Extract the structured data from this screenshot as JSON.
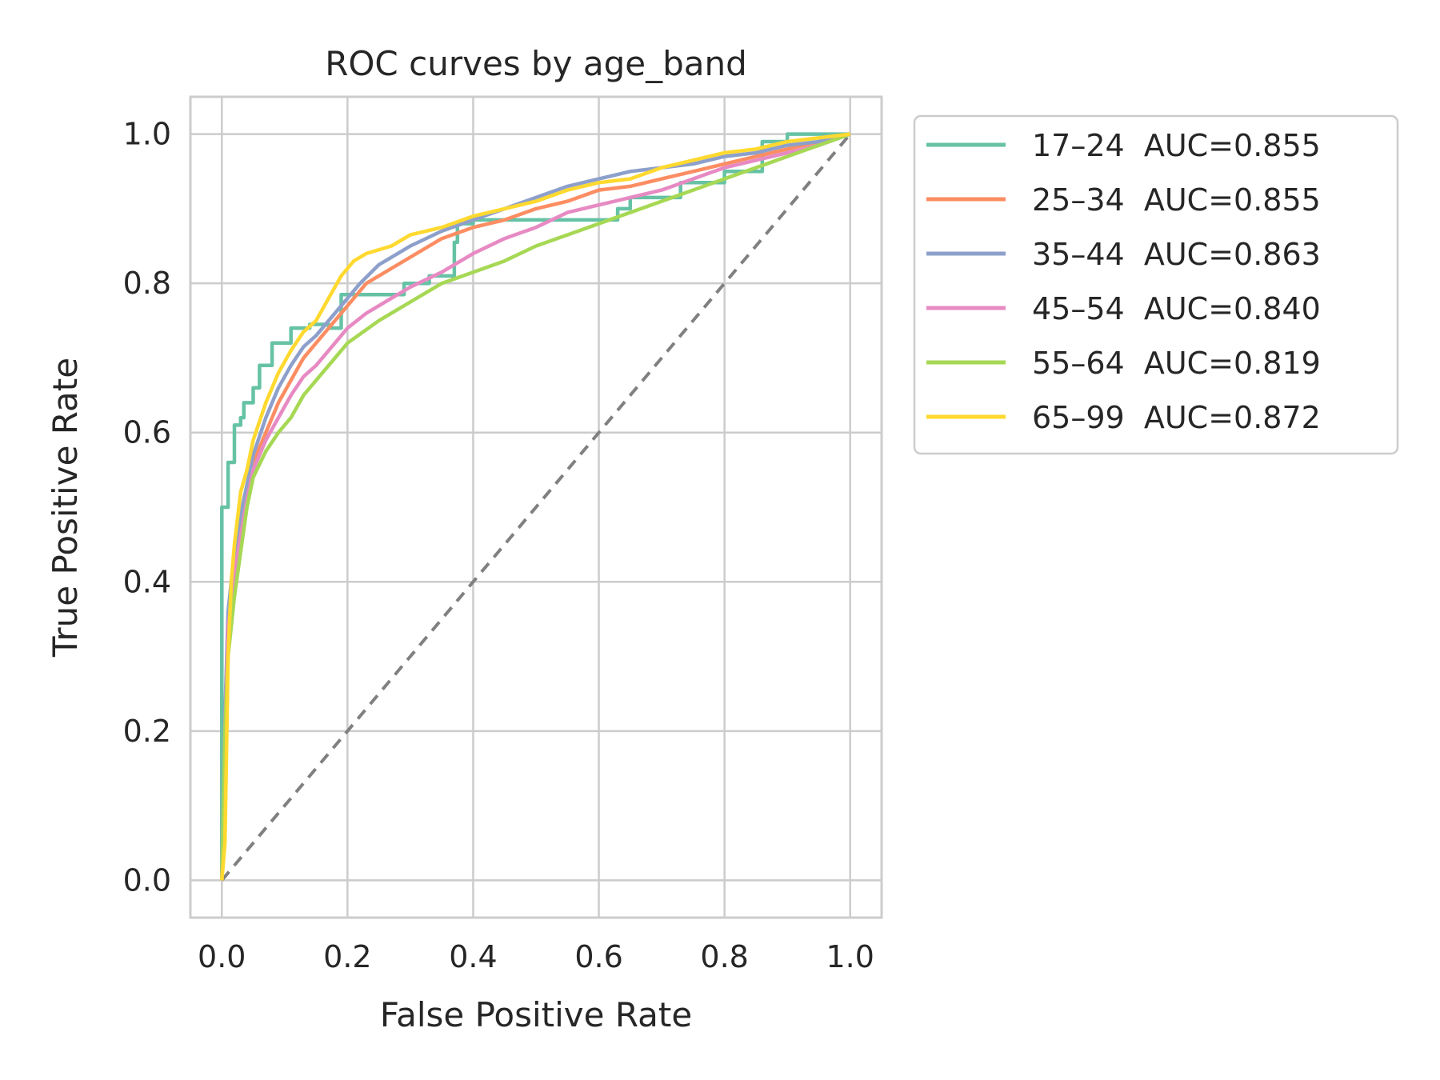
{
  "chart_data": {
    "type": "line",
    "title": "ROC curves by age_band",
    "xlabel": "False Positive Rate",
    "ylabel": "True Positive Rate",
    "xlim": [
      -0.05,
      1.05
    ],
    "ylim": [
      -0.05,
      1.05
    ],
    "xticks": [
      0.0,
      0.2,
      0.4,
      0.6,
      0.8,
      1.0
    ],
    "yticks": [
      0.0,
      0.2,
      0.4,
      0.6,
      0.8,
      1.0
    ],
    "xtick_labels": [
      "0.0",
      "0.2",
      "0.4",
      "0.6",
      "0.8",
      "1.0"
    ],
    "ytick_labels": [
      "0.0",
      "0.2",
      "0.4",
      "0.6",
      "0.8",
      "1.0"
    ],
    "grid": true,
    "legend_position": "outside upper right",
    "diagonal": {
      "style": "dashed",
      "color": "#808080",
      "points": [
        [
          0,
          0
        ],
        [
          1,
          1
        ]
      ]
    },
    "series": [
      {
        "name": "17–24",
        "label": "17–24  AUC=0.855",
        "auc": 0.855,
        "color": "#66c2a5",
        "step": true,
        "points": [
          [
            0,
            0
          ],
          [
            0,
            0.5
          ],
          [
            0.01,
            0.5
          ],
          [
            0.01,
            0.56
          ],
          [
            0.02,
            0.56
          ],
          [
            0.02,
            0.61
          ],
          [
            0.03,
            0.61
          ],
          [
            0.03,
            0.62
          ],
          [
            0.035,
            0.62
          ],
          [
            0.035,
            0.64
          ],
          [
            0.05,
            0.64
          ],
          [
            0.05,
            0.66
          ],
          [
            0.06,
            0.66
          ],
          [
            0.06,
            0.69
          ],
          [
            0.08,
            0.69
          ],
          [
            0.08,
            0.72
          ],
          [
            0.11,
            0.72
          ],
          [
            0.11,
            0.74
          ],
          [
            0.14,
            0.74
          ],
          [
            0.14,
            0.745
          ],
          [
            0.17,
            0.745
          ],
          [
            0.17,
            0.74
          ],
          [
            0.19,
            0.74
          ],
          [
            0.19,
            0.785
          ],
          [
            0.29,
            0.785
          ],
          [
            0.29,
            0.8
          ],
          [
            0.33,
            0.8
          ],
          [
            0.33,
            0.81
          ],
          [
            0.37,
            0.81
          ],
          [
            0.37,
            0.855
          ],
          [
            0.375,
            0.855
          ],
          [
            0.375,
            0.88
          ],
          [
            0.4,
            0.88
          ],
          [
            0.4,
            0.885
          ],
          [
            0.63,
            0.885
          ],
          [
            0.63,
            0.9
          ],
          [
            0.65,
            0.9
          ],
          [
            0.65,
            0.915
          ],
          [
            0.73,
            0.915
          ],
          [
            0.73,
            0.935
          ],
          [
            0.8,
            0.935
          ],
          [
            0.8,
            0.95
          ],
          [
            0.86,
            0.95
          ],
          [
            0.86,
            0.99
          ],
          [
            0.9,
            0.99
          ],
          [
            0.9,
            1.0
          ],
          [
            1,
            1
          ]
        ]
      },
      {
        "name": "25–34",
        "label": "25–34  AUC=0.855",
        "auc": 0.855,
        "color": "#fc8d62",
        "step": false,
        "points": [
          [
            0,
            0
          ],
          [
            0.005,
            0.2
          ],
          [
            0.01,
            0.35
          ],
          [
            0.02,
            0.42
          ],
          [
            0.03,
            0.47
          ],
          [
            0.04,
            0.52
          ],
          [
            0.05,
            0.56
          ],
          [
            0.07,
            0.6
          ],
          [
            0.09,
            0.64
          ],
          [
            0.11,
            0.67
          ],
          [
            0.13,
            0.7
          ],
          [
            0.15,
            0.72
          ],
          [
            0.18,
            0.75
          ],
          [
            0.2,
            0.77
          ],
          [
            0.23,
            0.8
          ],
          [
            0.27,
            0.82
          ],
          [
            0.3,
            0.835
          ],
          [
            0.35,
            0.86
          ],
          [
            0.4,
            0.875
          ],
          [
            0.45,
            0.885
          ],
          [
            0.5,
            0.9
          ],
          [
            0.55,
            0.91
          ],
          [
            0.6,
            0.925
          ],
          [
            0.65,
            0.93
          ],
          [
            0.7,
            0.94
          ],
          [
            0.75,
            0.95
          ],
          [
            0.8,
            0.96
          ],
          [
            0.85,
            0.97
          ],
          [
            0.9,
            0.98
          ],
          [
            0.95,
            0.99
          ],
          [
            1,
            1
          ]
        ]
      },
      {
        "name": "35–44",
        "label": "35–44  AUC=0.863",
        "auc": 0.863,
        "color": "#8da0cb",
        "step": false,
        "points": [
          [
            0,
            0
          ],
          [
            0.005,
            0.22
          ],
          [
            0.01,
            0.36
          ],
          [
            0.02,
            0.44
          ],
          [
            0.03,
            0.49
          ],
          [
            0.04,
            0.53
          ],
          [
            0.05,
            0.57
          ],
          [
            0.07,
            0.62
          ],
          [
            0.09,
            0.66
          ],
          [
            0.11,
            0.69
          ],
          [
            0.13,
            0.715
          ],
          [
            0.15,
            0.73
          ],
          [
            0.18,
            0.76
          ],
          [
            0.2,
            0.78
          ],
          [
            0.22,
            0.8
          ],
          [
            0.25,
            0.825
          ],
          [
            0.3,
            0.85
          ],
          [
            0.35,
            0.87
          ],
          [
            0.4,
            0.885
          ],
          [
            0.45,
            0.9
          ],
          [
            0.5,
            0.915
          ],
          [
            0.55,
            0.93
          ],
          [
            0.6,
            0.94
          ],
          [
            0.65,
            0.95
          ],
          [
            0.7,
            0.955
          ],
          [
            0.75,
            0.96
          ],
          [
            0.8,
            0.97
          ],
          [
            0.85,
            0.975
          ],
          [
            0.9,
            0.985
          ],
          [
            0.95,
            0.99
          ],
          [
            1,
            1
          ]
        ]
      },
      {
        "name": "45–54",
        "label": "45–54  AUC=0.840",
        "auc": 0.84,
        "color": "#e78ac3",
        "step": false,
        "points": [
          [
            0,
            0
          ],
          [
            0.005,
            0.2
          ],
          [
            0.01,
            0.34
          ],
          [
            0.02,
            0.41
          ],
          [
            0.03,
            0.46
          ],
          [
            0.04,
            0.51
          ],
          [
            0.05,
            0.55
          ],
          [
            0.07,
            0.59
          ],
          [
            0.09,
            0.62
          ],
          [
            0.11,
            0.65
          ],
          [
            0.13,
            0.675
          ],
          [
            0.15,
            0.69
          ],
          [
            0.18,
            0.72
          ],
          [
            0.2,
            0.74
          ],
          [
            0.23,
            0.76
          ],
          [
            0.27,
            0.78
          ],
          [
            0.3,
            0.795
          ],
          [
            0.35,
            0.815
          ],
          [
            0.4,
            0.84
          ],
          [
            0.45,
            0.86
          ],
          [
            0.5,
            0.875
          ],
          [
            0.55,
            0.895
          ],
          [
            0.6,
            0.905
          ],
          [
            0.65,
            0.915
          ],
          [
            0.7,
            0.925
          ],
          [
            0.75,
            0.94
          ],
          [
            0.8,
            0.955
          ],
          [
            0.85,
            0.965
          ],
          [
            0.9,
            0.975
          ],
          [
            0.95,
            0.985
          ],
          [
            1,
            1
          ]
        ]
      },
      {
        "name": "55–64",
        "label": "55–64  AUC=0.819",
        "auc": 0.819,
        "color": "#a6d854",
        "step": false,
        "points": [
          [
            0,
            0
          ],
          [
            0.005,
            0.2
          ],
          [
            0.01,
            0.3
          ],
          [
            0.02,
            0.38
          ],
          [
            0.03,
            0.44
          ],
          [
            0.04,
            0.5
          ],
          [
            0.05,
            0.54
          ],
          [
            0.07,
            0.575
          ],
          [
            0.09,
            0.6
          ],
          [
            0.11,
            0.62
          ],
          [
            0.13,
            0.65
          ],
          [
            0.15,
            0.67
          ],
          [
            0.18,
            0.7
          ],
          [
            0.2,
            0.72
          ],
          [
            0.25,
            0.75
          ],
          [
            0.3,
            0.775
          ],
          [
            0.35,
            0.8
          ],
          [
            0.4,
            0.815
          ],
          [
            0.45,
            0.83
          ],
          [
            0.5,
            0.85
          ],
          [
            0.55,
            0.865
          ],
          [
            0.6,
            0.88
          ],
          [
            0.65,
            0.895
          ],
          [
            0.7,
            0.91
          ],
          [
            0.75,
            0.925
          ],
          [
            0.8,
            0.94
          ],
          [
            0.85,
            0.955
          ],
          [
            0.9,
            0.97
          ],
          [
            0.95,
            0.985
          ],
          [
            1,
            1
          ]
        ]
      },
      {
        "name": "65–99",
        "label": "65–99  AUC=0.872",
        "auc": 0.872,
        "color": "#ffd92f",
        "step": false,
        "points": [
          [
            0,
            0
          ],
          [
            0.005,
            0.05
          ],
          [
            0.01,
            0.3
          ],
          [
            0.015,
            0.4
          ],
          [
            0.02,
            0.45
          ],
          [
            0.03,
            0.52
          ],
          [
            0.04,
            0.55
          ],
          [
            0.05,
            0.59
          ],
          [
            0.07,
            0.64
          ],
          [
            0.09,
            0.68
          ],
          [
            0.11,
            0.71
          ],
          [
            0.13,
            0.735
          ],
          [
            0.15,
            0.75
          ],
          [
            0.17,
            0.78
          ],
          [
            0.19,
            0.81
          ],
          [
            0.21,
            0.83
          ],
          [
            0.23,
            0.84
          ],
          [
            0.27,
            0.85
          ],
          [
            0.3,
            0.865
          ],
          [
            0.35,
            0.875
          ],
          [
            0.4,
            0.89
          ],
          [
            0.45,
            0.9
          ],
          [
            0.5,
            0.91
          ],
          [
            0.55,
            0.925
          ],
          [
            0.6,
            0.935
          ],
          [
            0.65,
            0.94
          ],
          [
            0.7,
            0.955
          ],
          [
            0.75,
            0.965
          ],
          [
            0.8,
            0.975
          ],
          [
            0.85,
            0.98
          ],
          [
            0.9,
            0.99
          ],
          [
            0.95,
            0.995
          ],
          [
            1,
            1
          ]
        ]
      }
    ]
  }
}
